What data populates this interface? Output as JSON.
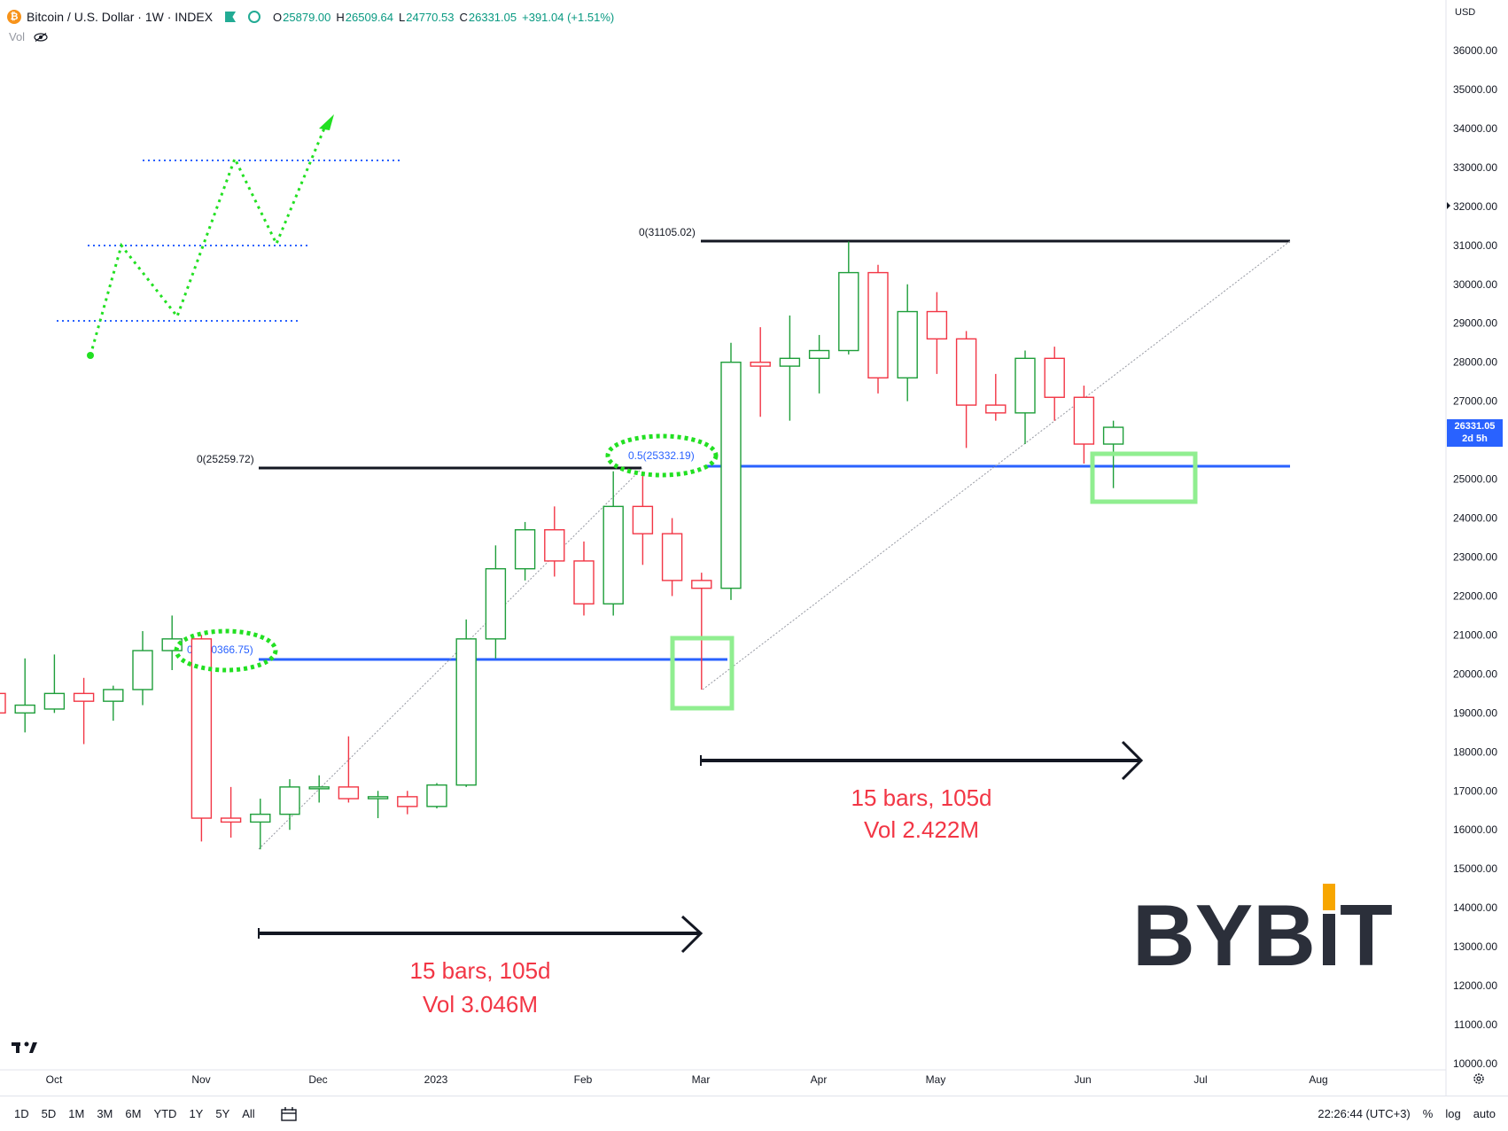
{
  "header": {
    "symbol": "Bitcoin / U.S. Dollar · 1W · INDEX",
    "open_label": "O",
    "open": "25879.00",
    "high_label": "H",
    "high": "26509.64",
    "low_label": "L",
    "low": "24770.53",
    "close_label": "C",
    "close": "26331.05",
    "change": "+391.04 (+1.51%)"
  },
  "vol_label": "Vol",
  "currency": "USD",
  "price_tag": {
    "price": "26331.05",
    "countdown": "2d 5h"
  },
  "price_axis": [
    "36000.00",
    "35000.00",
    "34000.00",
    "33000.00",
    "32000.00",
    "31000.00",
    "30000.00",
    "29000.00",
    "28000.00",
    "27000.00",
    "26000.00",
    "25000.00",
    "24000.00",
    "23000.00",
    "22000.00",
    "21000.00",
    "20000.00",
    "19000.00",
    "18000.00",
    "17000.00",
    "16000.00",
    "15000.00",
    "14000.00",
    "13000.00",
    "12000.00",
    "11000.00",
    "10000.00"
  ],
  "time_axis": [
    "Oct",
    "Nov",
    "Dec",
    "2023",
    "Feb",
    "Mar",
    "Apr",
    "May",
    "Jun",
    "Jul",
    "Aug"
  ],
  "annotations": {
    "fib_top_label": "0(31105.02)",
    "fib_mid_label": "0(25259.72)",
    "fib_half_1": "0.5(25332.19)",
    "fib_half_2": "0.5(20366.75)",
    "measure_1_bars": "15 bars, 105d",
    "measure_1_vol": "Vol 3.046M",
    "measure_2_bars": "15 bars, 105d",
    "measure_2_vol": "Vol 2.422M"
  },
  "watermark": "BYBIT",
  "colors": {
    "up": "#089981",
    "up_candle": "#1e9e3a",
    "down": "#f23645",
    "blue": "#2962ff",
    "green_hl": "#90ee90",
    "text": "#131722"
  },
  "bottom_bar": {
    "ranges": [
      "1D",
      "5D",
      "1M",
      "3M",
      "6M",
      "YTD",
      "1Y",
      "5Y",
      "All"
    ],
    "time": "22:26:44 (UTC+3)",
    "percent": "%",
    "log": "log",
    "auto": "auto"
  },
  "chart_data": {
    "type": "candlestick",
    "title": "Bitcoin / U.S. Dollar · 1W · INDEX",
    "ylim": [
      10000,
      36000
    ],
    "candles": [
      {
        "o": 19500,
        "h": 19550,
        "l": 19000,
        "c": 19000
      },
      {
        "o": 19000,
        "h": 20400,
        "l": 18500,
        "c": 19200
      },
      {
        "o": 19100,
        "h": 20500,
        "l": 19000,
        "c": 19500
      },
      {
        "o": 19500,
        "h": 19900,
        "l": 18200,
        "c": 19300
      },
      {
        "o": 19300,
        "h": 19700,
        "l": 18800,
        "c": 19600
      },
      {
        "o": 19600,
        "h": 21100,
        "l": 19200,
        "c": 20600
      },
      {
        "o": 20600,
        "h": 21500,
        "l": 20100,
        "c": 20900
      },
      {
        "o": 20900,
        "h": 21000,
        "l": 15700,
        "c": 16300
      },
      {
        "o": 16300,
        "h": 17100,
        "l": 15800,
        "c": 16200
      },
      {
        "o": 16200,
        "h": 16800,
        "l": 15500,
        "c": 16400
      },
      {
        "o": 16400,
        "h": 17300,
        "l": 16000,
        "c": 17100
      },
      {
        "o": 17100,
        "h": 17400,
        "l": 16700,
        "c": 17100
      },
      {
        "o": 17100,
        "h": 18400,
        "l": 16700,
        "c": 16800
      },
      {
        "o": 16800,
        "h": 17000,
        "l": 16300,
        "c": 16850
      },
      {
        "o": 16850,
        "h": 17000,
        "l": 16400,
        "c": 16600
      },
      {
        "o": 16600,
        "h": 17200,
        "l": 16550,
        "c": 17150
      },
      {
        "o": 17150,
        "h": 21400,
        "l": 17100,
        "c": 20900
      },
      {
        "o": 20900,
        "h": 23300,
        "l": 20400,
        "c": 22700
      },
      {
        "o": 22700,
        "h": 23900,
        "l": 22400,
        "c": 23700
      },
      {
        "o": 23700,
        "h": 24300,
        "l": 22500,
        "c": 22900
      },
      {
        "o": 22900,
        "h": 23400,
        "l": 21500,
        "c": 21800
      },
      {
        "o": 21800,
        "h": 25200,
        "l": 21500,
        "c": 24300
      },
      {
        "o": 24300,
        "h": 25200,
        "l": 22800,
        "c": 23600
      },
      {
        "o": 23600,
        "h": 24000,
        "l": 22000,
        "c": 22400
      },
      {
        "o": 22400,
        "h": 22600,
        "l": 19600,
        "c": 22200
      },
      {
        "o": 22200,
        "h": 28500,
        "l": 21900,
        "c": 28000
      },
      {
        "o": 28000,
        "h": 28900,
        "l": 26600,
        "c": 27900
      },
      {
        "o": 27900,
        "h": 29200,
        "l": 26500,
        "c": 28100
      },
      {
        "o": 28100,
        "h": 28700,
        "l": 27200,
        "c": 28300
      },
      {
        "o": 28300,
        "h": 31100,
        "l": 28200,
        "c": 30300
      },
      {
        "o": 30300,
        "h": 30500,
        "l": 27200,
        "c": 27600
      },
      {
        "o": 27600,
        "h": 30000,
        "l": 27000,
        "c": 29300
      },
      {
        "o": 29300,
        "h": 29800,
        "l": 27700,
        "c": 28600
      },
      {
        "o": 28600,
        "h": 28800,
        "l": 25800,
        "c": 26900
      },
      {
        "o": 26900,
        "h": 27700,
        "l": 26500,
        "c": 26700
      },
      {
        "o": 26700,
        "h": 28300,
        "l": 25900,
        "c": 28100
      },
      {
        "o": 28100,
        "h": 28400,
        "l": 26500,
        "c": 27100
      },
      {
        "o": 27100,
        "h": 27400,
        "l": 25400,
        "c": 25900
      },
      {
        "o": 25900,
        "h": 26500,
        "l": 24770,
        "c": 26331
      }
    ]
  }
}
